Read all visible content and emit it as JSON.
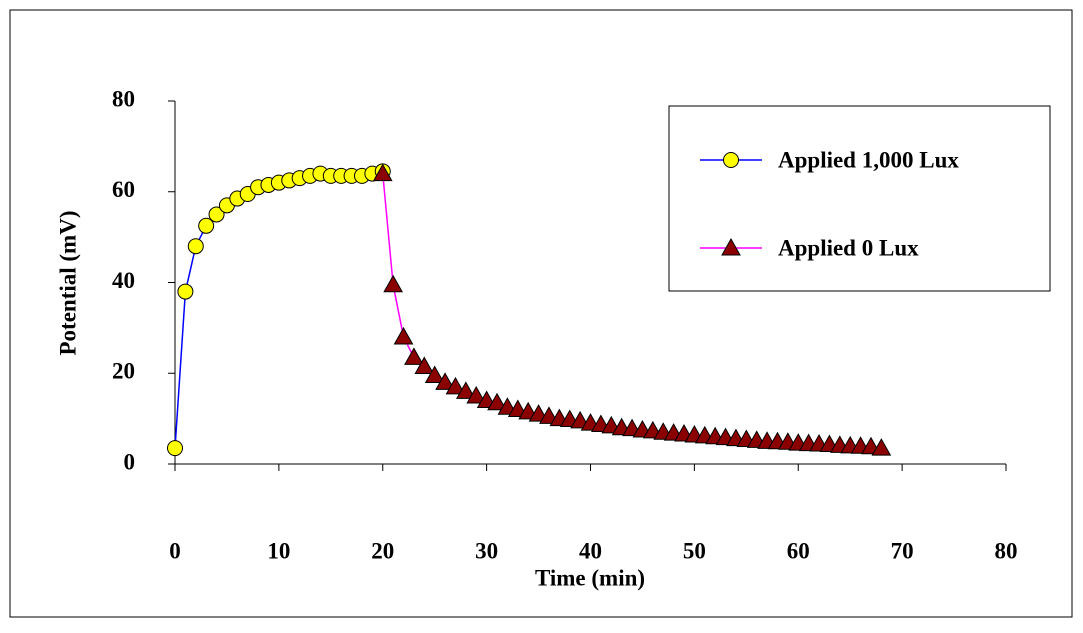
{
  "chart_data": {
    "type": "line",
    "xlabel": "Time (min)",
    "ylabel": "Potential (mV)",
    "xlim": [
      0,
      80
    ],
    "xticks": [
      0,
      10,
      20,
      30,
      40,
      50,
      60,
      70,
      80
    ],
    "ylim": [
      0,
      80
    ],
    "yticks": [
      0,
      20,
      40,
      60,
      80
    ],
    "legend": "upper right",
    "series": [
      {
        "name": "Applied 1,000 Lux",
        "color": "#0000ff",
        "marker": "circle",
        "marker_color": "#ffff00",
        "x": [
          0,
          1,
          2,
          3,
          4,
          5,
          6,
          7,
          8,
          9,
          10,
          11,
          12,
          13,
          14,
          15,
          16,
          17,
          18,
          19,
          20
        ],
        "values": [
          3.5,
          38,
          48,
          52.5,
          55,
          57,
          58.5,
          59.5,
          61,
          61.5,
          62,
          62.5,
          63,
          63.5,
          64,
          63.5,
          63.5,
          63.5,
          63.5,
          64,
          64.5
        ]
      },
      {
        "name": "Applied 0 Lux",
        "color": "#ff00ff",
        "marker": "triangle",
        "marker_color": "#8b0000",
        "x": [
          20,
          21,
          22,
          23,
          24,
          25,
          26,
          27,
          28,
          29,
          30,
          31,
          32,
          33,
          34,
          35,
          36,
          37,
          38,
          39,
          40,
          41,
          42,
          43,
          44,
          45,
          46,
          47,
          48,
          49,
          50,
          51,
          52,
          53,
          54,
          55,
          56,
          57,
          58,
          59,
          60,
          61,
          62,
          63,
          64,
          65,
          66,
          67,
          68
        ],
        "values": [
          64,
          39.5,
          28,
          23.5,
          21.5,
          19.5,
          18,
          17,
          16,
          15,
          14,
          13.5,
          12.5,
          12,
          11.5,
          11,
          10.5,
          10,
          9.8,
          9.5,
          9,
          8.7,
          8.4,
          8,
          7.8,
          7.5,
          7.3,
          7,
          6.8,
          6.6,
          6.4,
          6.2,
          6,
          5.8,
          5.6,
          5.4,
          5.2,
          5,
          4.9,
          4.8,
          4.6,
          4.5,
          4.4,
          4.3,
          4.1,
          4,
          3.9,
          3.8,
          3.5
        ]
      }
    ]
  }
}
